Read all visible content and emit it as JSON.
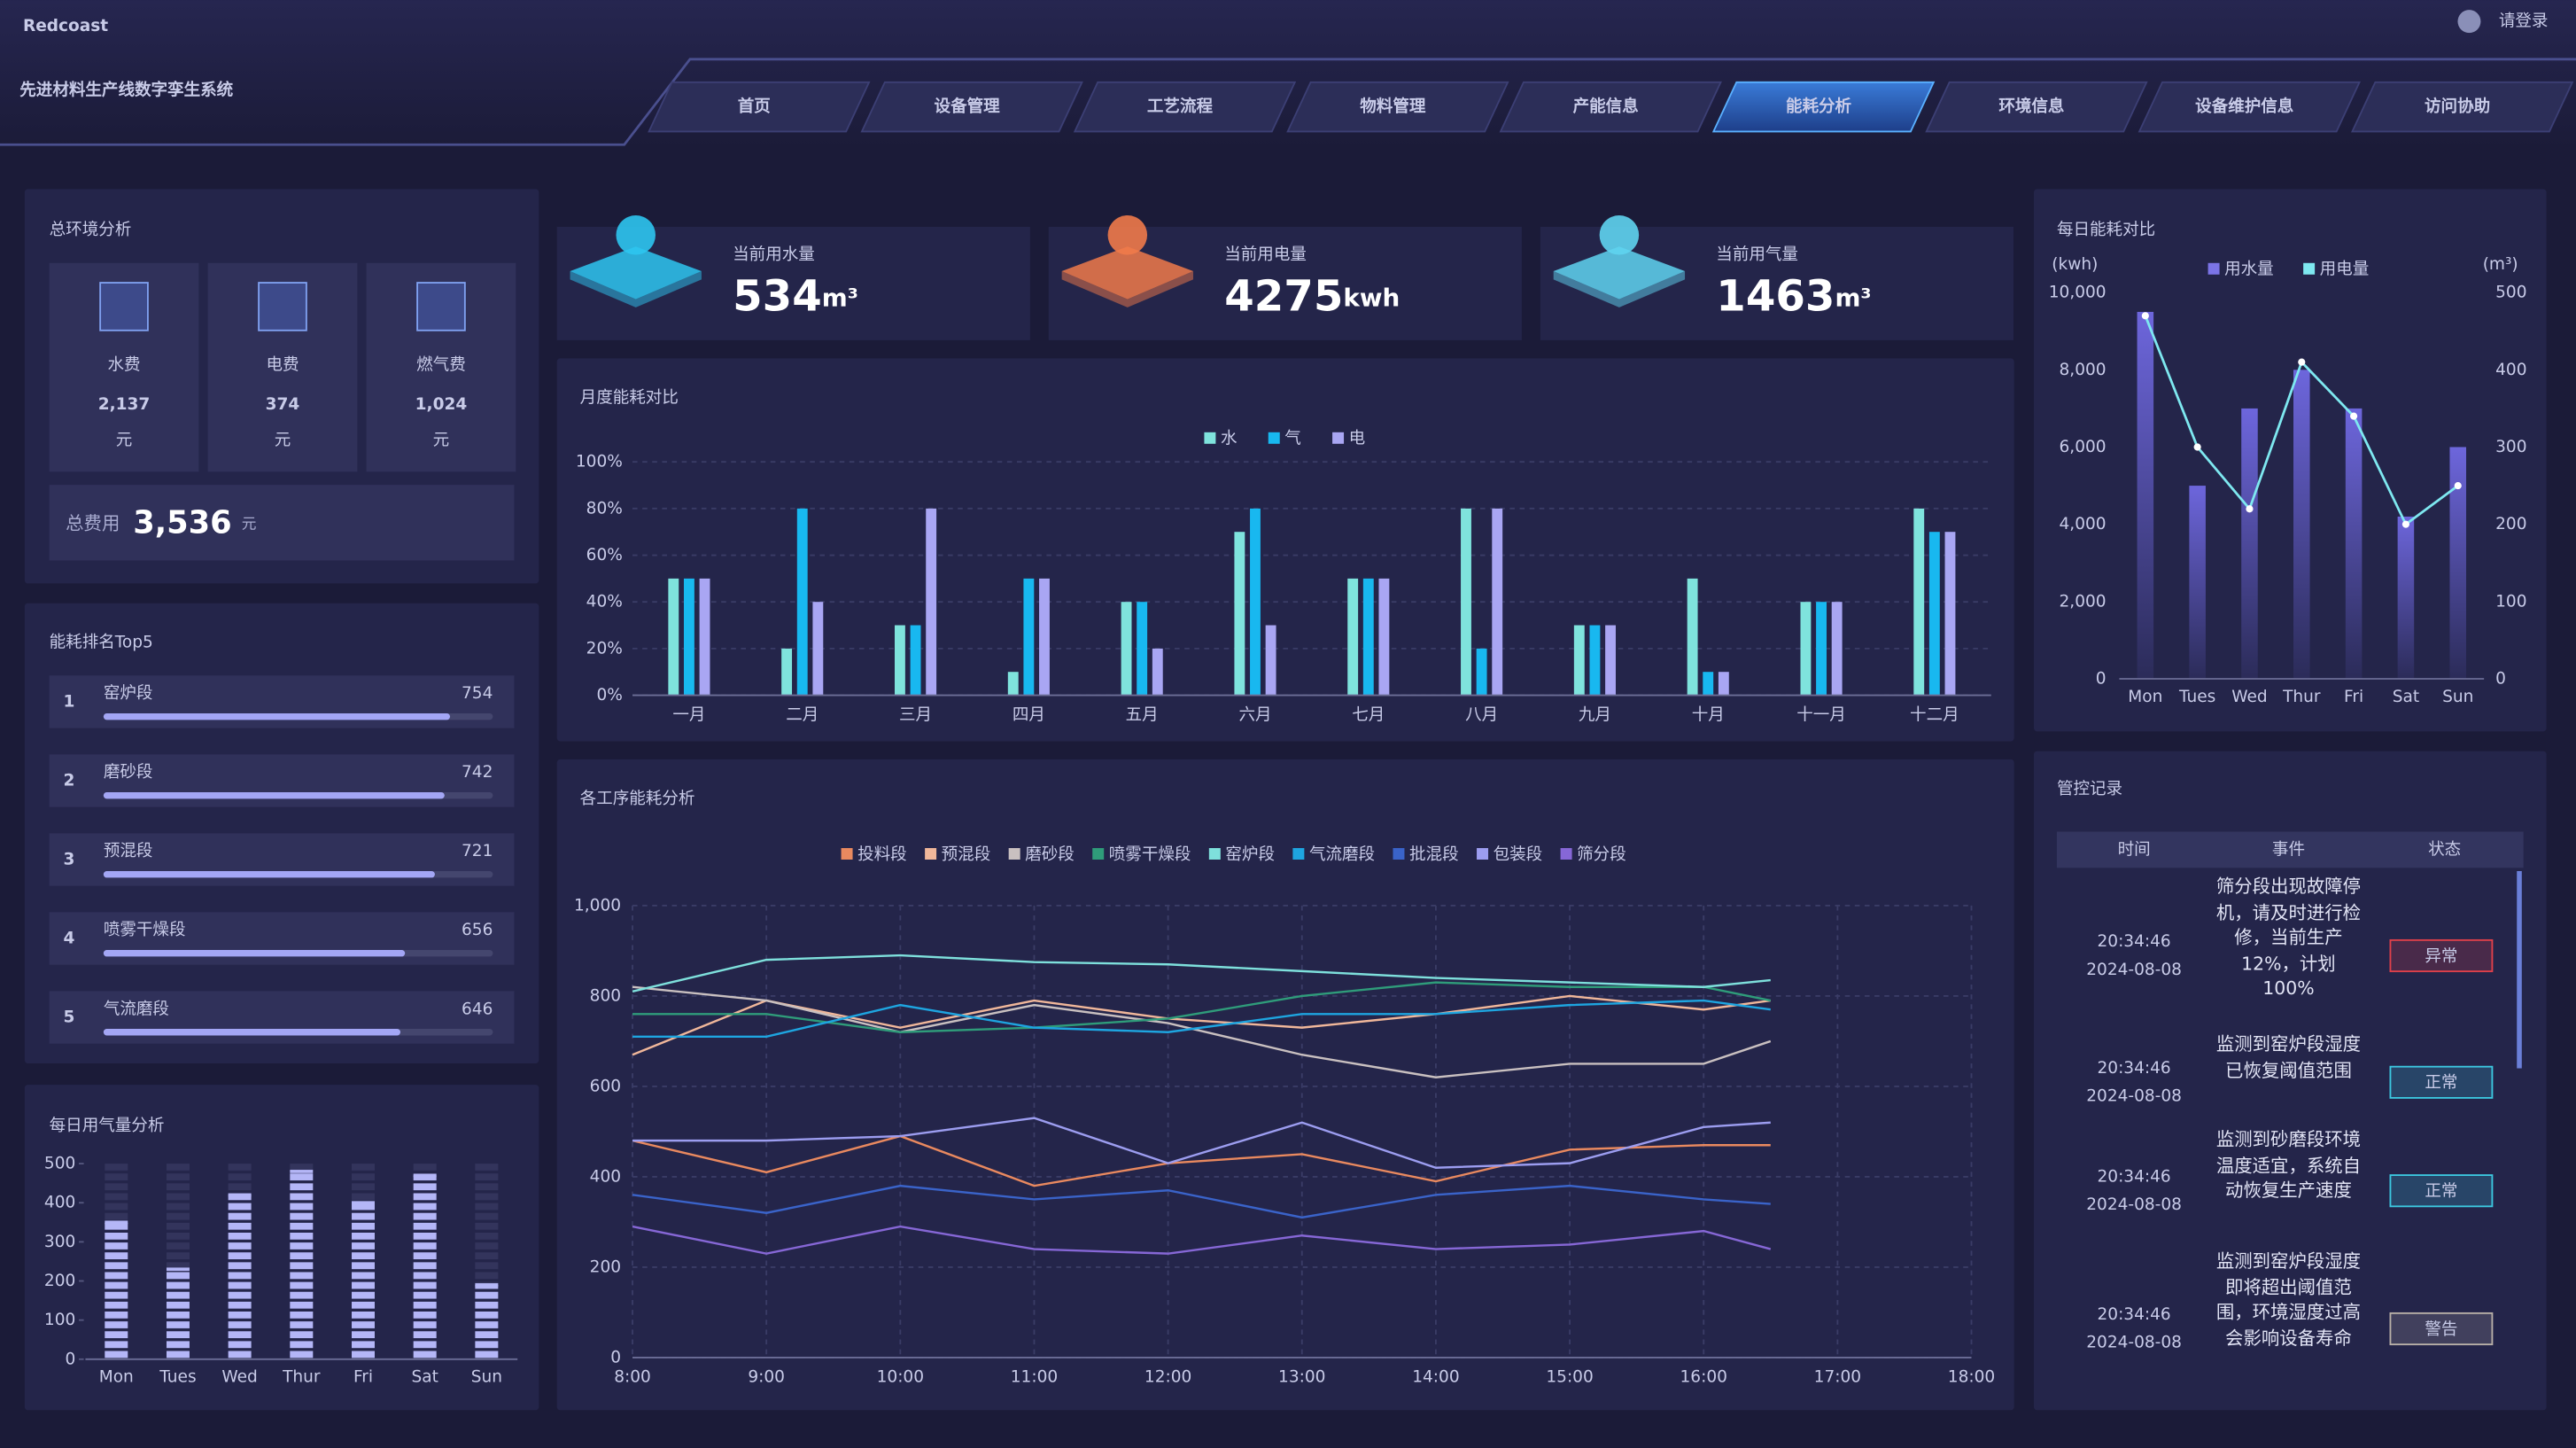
{
  "header": {
    "logo": "Redcoast",
    "title": "先进材料生产线数字孪生系统",
    "login": "请登录"
  },
  "nav": [
    "首页",
    "设备管理",
    "工艺流程",
    "物料管理",
    "产能信息",
    "能耗分析",
    "环境信息",
    "设备维护信息",
    "访问协助"
  ],
  "nav_active": 5,
  "env": {
    "title": "总环境分析",
    "items": [
      {
        "label": "水费",
        "value": "2,137",
        "unit": "元"
      },
      {
        "label": "电费",
        "value": "374",
        "unit": "元"
      },
      {
        "label": "燃气费",
        "value": "1,024",
        "unit": "元"
      }
    ],
    "total": {
      "label": "总费用",
      "value": "3,536",
      "unit": "元"
    }
  },
  "top5": {
    "title": "能耗排名Top5",
    "color": "#a3a6f5",
    "items": [
      {
        "rank": 1,
        "name": "窑炉段",
        "value": 754
      },
      {
        "rank": 2,
        "name": "磨砂段",
        "value": 742
      },
      {
        "rank": 3,
        "name": "预混段",
        "value": 721
      },
      {
        "rank": 4,
        "name": "喷雾干燥段",
        "value": 656
      },
      {
        "rank": 5,
        "name": "气流磨段",
        "value": 646
      }
    ]
  },
  "gas": {
    "type": "bar",
    "title": "每日用气量分析",
    "categories": [
      "Mon",
      "Tues",
      "Wed",
      "Thur",
      "Fri",
      "Sat",
      "Sun"
    ],
    "values": [
      350,
      230,
      420,
      480,
      400,
      470,
      190
    ],
    "color": "#b4b6f7",
    "ylim": [
      0,
      500
    ],
    "yticks": [
      0,
      100,
      200,
      300,
      400,
      500
    ]
  },
  "kpis": [
    {
      "label": "当前用水量",
      "value": 534,
      "unit": "m³",
      "color": "#2ec5f0"
    },
    {
      "label": "当前用电量",
      "value": 4275,
      "unit": "kwh",
      "color": "#f07a4a"
    },
    {
      "label": "当前用气量",
      "value": 1463,
      "unit": "m³",
      "color": "#5fd4f0"
    }
  ],
  "monthly": {
    "type": "bar",
    "title": "月度能耗对比",
    "categories": [
      "一月",
      "二月",
      "三月",
      "四月",
      "五月",
      "六月",
      "七月",
      "八月",
      "九月",
      "十月",
      "十一月",
      "十二月"
    ],
    "series": [
      {
        "name": "水",
        "color": "#7fe3dd",
        "values": [
          50,
          20,
          30,
          10,
          40,
          70,
          50,
          80,
          30,
          50,
          40,
          80
        ]
      },
      {
        "name": "气",
        "color": "#18b8f0",
        "values": [
          50,
          80,
          30,
          50,
          40,
          80,
          50,
          20,
          30,
          10,
          40,
          70
        ]
      },
      {
        "name": "电",
        "color": "#a9a6f3",
        "values": [
          50,
          40,
          80,
          50,
          20,
          30,
          50,
          80,
          30,
          10,
          40,
          70
        ]
      }
    ],
    "ylim": [
      0,
      100
    ],
    "yticks": [
      {
        "value": 0,
        "label": "0%"
      },
      {
        "value": 20,
        "label": "20%"
      },
      {
        "value": 40,
        "label": "40%"
      },
      {
        "value": 60,
        "label": "60%"
      },
      {
        "value": 80,
        "label": "80%"
      },
      {
        "value": 100,
        "label": "100%"
      }
    ]
  },
  "process": {
    "type": "line",
    "title": "各工序能耗分析",
    "x": [
      8,
      9,
      10,
      11,
      12,
      13,
      14,
      15,
      16,
      16.5
    ],
    "xlim": [
      8,
      18
    ],
    "xticks": [
      {
        "value": 8,
        "label": "8:00"
      },
      {
        "value": 9,
        "label": "9:00"
      },
      {
        "value": 10,
        "label": "10:00"
      },
      {
        "value": 11,
        "label": "11:00"
      },
      {
        "value": 12,
        "label": "12:00"
      },
      {
        "value": 13,
        "label": "13:00"
      },
      {
        "value": 14,
        "label": "14:00"
      },
      {
        "value": 15,
        "label": "15:00"
      },
      {
        "value": 16,
        "label": "16:00"
      },
      {
        "value": 17,
        "label": "17:00"
      },
      {
        "value": 18,
        "label": "18:00"
      }
    ],
    "ylim": [
      0,
      1000
    ],
    "yticks": [
      0,
      200,
      400,
      600,
      800,
      {
        "value": 1000,
        "label": "1,000"
      }
    ],
    "grid": true,
    "series": [
      {
        "name": "投料段",
        "color": "#e9895f",
        "values": [
          480,
          410,
          490,
          380,
          430,
          450,
          390,
          460,
          470,
          470
        ]
      },
      {
        "name": "预混段",
        "color": "#f0b79a",
        "values": [
          670,
          790,
          730,
          790,
          750,
          730,
          760,
          800,
          770,
          790
        ]
      },
      {
        "name": "磨砂段",
        "color": "#c9c0c0",
        "values": [
          820,
          790,
          720,
          780,
          740,
          670,
          620,
          650,
          650,
          700
        ]
      },
      {
        "name": "喷雾干燥段",
        "color": "#2f9c7a",
        "values": [
          760,
          760,
          720,
          730,
          750,
          800,
          830,
          820,
          820,
          790
        ]
      },
      {
        "name": "窑炉段",
        "color": "#7ee0dc",
        "values": [
          810,
          880,
          890,
          875,
          870,
          855,
          840,
          830,
          820,
          835
        ]
      },
      {
        "name": "气流磨段",
        "color": "#1ea5e0",
        "values": [
          710,
          710,
          780,
          730,
          720,
          760,
          760,
          780,
          790,
          770
        ]
      },
      {
        "name": "批混段",
        "color": "#3a63c9",
        "values": [
          360,
          320,
          380,
          350,
          370,
          310,
          360,
          380,
          350,
          340
        ]
      },
      {
        "name": "包装段",
        "color": "#9c9df0",
        "values": [
          480,
          480,
          490,
          530,
          430,
          520,
          420,
          430,
          510,
          520
        ]
      },
      {
        "name": "筛分段",
        "color": "#8667d6",
        "values": [
          290,
          230,
          290,
          240,
          230,
          270,
          240,
          250,
          280,
          240
        ]
      }
    ]
  },
  "daily": {
    "type": "bar",
    "title": "每日能耗对比",
    "ylabel": "(kwh)",
    "y2label": "(m³)",
    "categories": [
      "Mon",
      "Tues",
      "Wed",
      "Thur",
      "Fri",
      "Sat",
      "Sun"
    ],
    "series": [
      {
        "name": "用水量",
        "type": "bar",
        "color": "#7b74e6",
        "values": [
          9500,
          5000,
          7000,
          8000,
          7000,
          4200,
          6000
        ]
      },
      {
        "name": "用电量",
        "type": "line",
        "axis": "y2",
        "color": "#7ee8f0",
        "values": [
          470,
          300,
          220,
          410,
          340,
          200,
          250
        ]
      }
    ],
    "ylim": [
      0,
      10000
    ],
    "yticks": [
      0,
      {
        "value": 2000,
        "label": "2,000"
      },
      {
        "value": 4000,
        "label": "4,000"
      },
      {
        "value": 6000,
        "label": "6,000"
      },
      {
        "value": 8000,
        "label": "8,000"
      },
      {
        "value": 10000,
        "label": "10,000"
      }
    ],
    "y2lim": [
      0,
      500
    ],
    "y2ticks": [
      0,
      100,
      200,
      300,
      400,
      500
    ]
  },
  "records": {
    "title": "管控记录",
    "columns": [
      "时间",
      "事件",
      "状态"
    ],
    "rows": [
      {
        "time": "20:34:46",
        "date": "2024-08-08",
        "event": "筛分段出现故障停机，请及时进行检修，当前生产12%，计划100%",
        "status": "异常",
        "color": "#e0404a"
      },
      {
        "time": "20:34:46",
        "date": "2024-08-08",
        "event": "监测到窑炉段湿度已恢复阈值范围",
        "status": "正常",
        "color": "#3cc8e0"
      },
      {
        "time": "20:34:46",
        "date": "2024-08-08",
        "event": "监测到砂磨段环境温度适宜，系统自动恢复生产速度",
        "status": "正常",
        "color": "#3cc8e0"
      },
      {
        "time": "20:34:46",
        "date": "2024-08-08",
        "event": "监测到窑炉段湿度即将超出阈值范围，环境湿度过高会影响设备寿命",
        "status": "警告",
        "color": "#b8b0a8"
      }
    ]
  }
}
